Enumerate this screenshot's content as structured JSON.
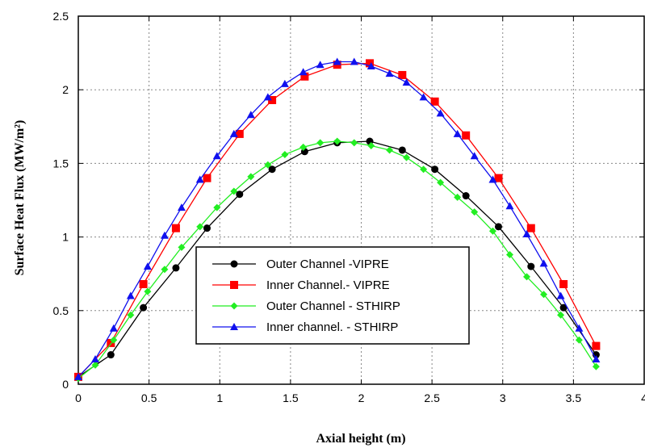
{
  "chart_data": {
    "type": "line",
    "xlabel": "Axial height (m)",
    "ylabel": "Surface Heat Flux (MW/m²)",
    "xlim": [
      0,
      4
    ],
    "ylim": [
      0,
      2.5
    ],
    "xticks": [
      "0",
      "0.5",
      "1",
      "1.5",
      "2",
      "2.5",
      "3",
      "3.5",
      "4"
    ],
    "yticks": [
      "0",
      "0.5",
      "1",
      "1.5",
      "2",
      "2.5"
    ],
    "grid": true,
    "legend_position": "lower-center",
    "series": [
      {
        "name": "Outer Channel -VIPRE",
        "color": "#000000",
        "marker": "circle",
        "x": [
          0,
          0.23,
          0.46,
          0.69,
          0.91,
          1.14,
          1.37,
          1.6,
          1.83,
          2.06,
          2.29,
          2.52,
          2.74,
          2.97,
          3.2,
          3.43,
          3.66
        ],
        "y": [
          0.05,
          0.2,
          0.52,
          0.79,
          1.06,
          1.29,
          1.46,
          1.58,
          1.64,
          1.65,
          1.59,
          1.46,
          1.28,
          1.07,
          0.8,
          0.52,
          0.2
        ]
      },
      {
        "name": "Inner Channel.- VIPRE",
        "color": "#ff0000",
        "marker": "square",
        "x": [
          0,
          0.23,
          0.46,
          0.69,
          0.91,
          1.14,
          1.37,
          1.6,
          1.83,
          2.06,
          2.29,
          2.52,
          2.74,
          2.97,
          3.2,
          3.43,
          3.66
        ],
        "y": [
          0.05,
          0.28,
          0.68,
          1.06,
          1.4,
          1.7,
          1.93,
          2.09,
          2.17,
          2.18,
          2.1,
          1.92,
          1.69,
          1.4,
          1.06,
          0.68,
          0.26
        ]
      },
      {
        "name": "Outer Channel - STHIRP",
        "color": "#22ee22",
        "marker": "diamond",
        "x": [
          0,
          0.12,
          0.25,
          0.37,
          0.49,
          0.61,
          0.73,
          0.86,
          0.98,
          1.1,
          1.22,
          1.34,
          1.46,
          1.59,
          1.71,
          1.83,
          1.95,
          2.07,
          2.2,
          2.32,
          2.44,
          2.56,
          2.68,
          2.8,
          2.93,
          3.05,
          3.17,
          3.29,
          3.41,
          3.54,
          3.66
        ],
        "y": [
          0.04,
          0.13,
          0.3,
          0.47,
          0.63,
          0.78,
          0.93,
          1.07,
          1.2,
          1.31,
          1.41,
          1.49,
          1.56,
          1.61,
          1.64,
          1.65,
          1.64,
          1.62,
          1.59,
          1.54,
          1.46,
          1.37,
          1.27,
          1.17,
          1.04,
          0.88,
          0.73,
          0.61,
          0.47,
          0.3,
          0.12
        ]
      },
      {
        "name": "Inner channel. - STHIRP",
        "color": "#1010ee",
        "marker": "triangle",
        "x": [
          0,
          0.12,
          0.25,
          0.37,
          0.49,
          0.61,
          0.73,
          0.86,
          0.98,
          1.1,
          1.22,
          1.34,
          1.46,
          1.59,
          1.71,
          1.83,
          1.95,
          2.07,
          2.2,
          2.32,
          2.44,
          2.56,
          2.68,
          2.8,
          2.93,
          3.05,
          3.17,
          3.29,
          3.41,
          3.54,
          3.66
        ],
        "y": [
          0.05,
          0.17,
          0.38,
          0.6,
          0.8,
          1.01,
          1.2,
          1.39,
          1.55,
          1.7,
          1.83,
          1.95,
          2.04,
          2.12,
          2.17,
          2.19,
          2.19,
          2.16,
          2.11,
          2.05,
          1.95,
          1.84,
          1.7,
          1.55,
          1.39,
          1.21,
          1.02,
          0.82,
          0.6,
          0.38,
          0.17
        ]
      }
    ]
  }
}
